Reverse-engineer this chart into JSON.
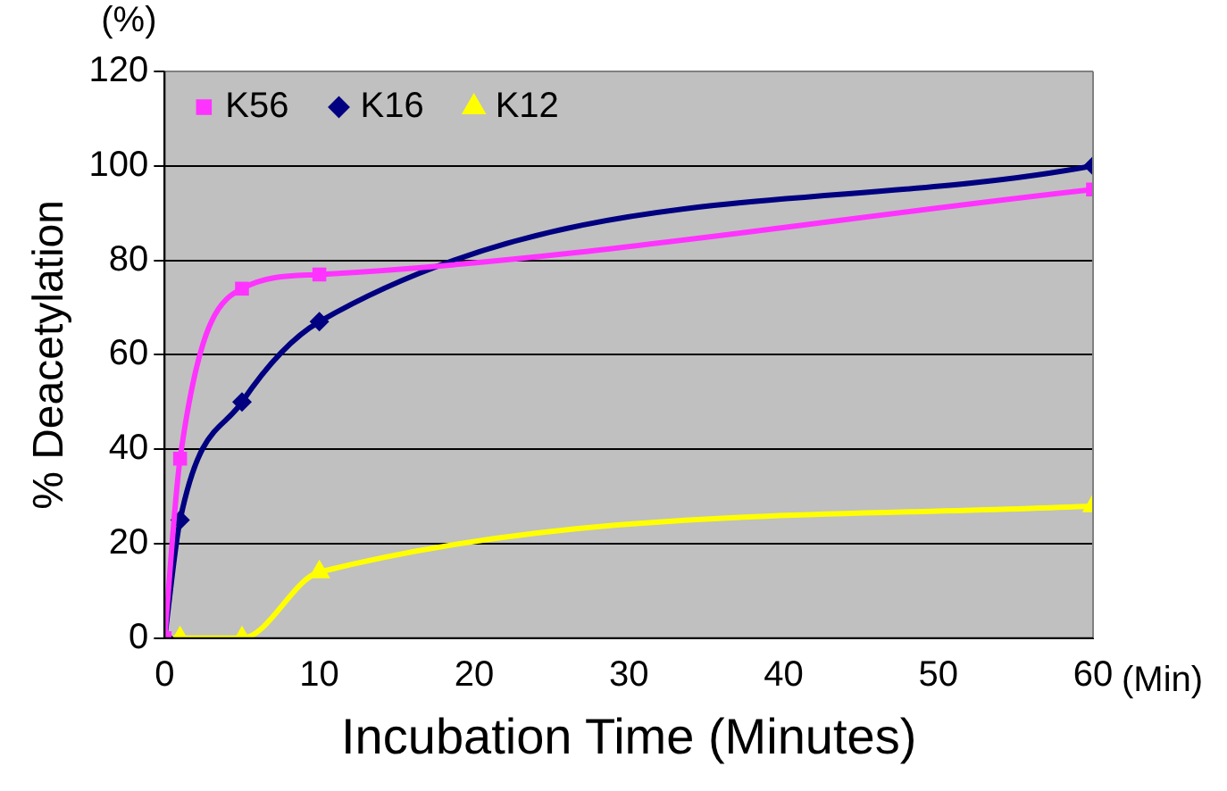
{
  "chart_data": {
    "type": "line",
    "xlabel": "Incubation Time (Minutes)",
    "ylabel": "% Deacetylation",
    "annotations": [
      "(%)",
      "(Min)"
    ],
    "xlim": [
      0,
      60
    ],
    "xticks": [
      0,
      10,
      20,
      30,
      40,
      50,
      60
    ],
    "ylim": [
      0,
      120
    ],
    "yticks": [
      0,
      20,
      40,
      60,
      80,
      100,
      120
    ],
    "grid": "y",
    "legend": "top left",
    "series": [
      {
        "name": "K56",
        "color": "#ff33ff",
        "marker": "square",
        "x": [
          0,
          1,
          5,
          10,
          60
        ],
        "values": [
          0,
          38,
          74,
          77,
          95
        ]
      },
      {
        "name": "K16",
        "color": "#000080",
        "marker": "diamond",
        "x": [
          0,
          1,
          5,
          10,
          60
        ],
        "values": [
          0,
          25,
          50,
          67,
          100
        ]
      },
      {
        "name": "K12",
        "color": "#ffff00",
        "marker": "triangle",
        "x": [
          0,
          1,
          5,
          10,
          60
        ],
        "values": [
          0,
          0,
          0,
          14,
          28
        ]
      }
    ]
  }
}
